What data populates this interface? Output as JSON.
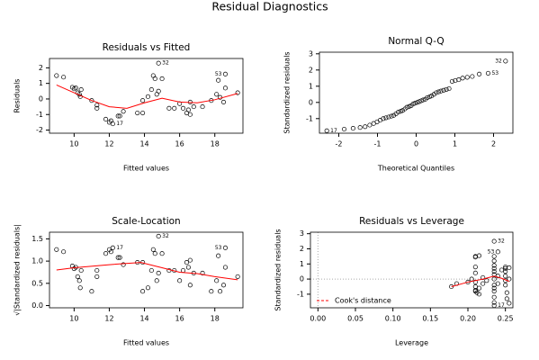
{
  "title": "Residual Diagnostics",
  "chart_data": [
    {
      "type": "scatter",
      "title": "Residuals vs Fitted",
      "xlabel": "Fitted values",
      "ylabel": "Residuals",
      "xlim": [
        8.6,
        19.6
      ],
      "ylim": [
        -2.2,
        2.6
      ],
      "xticks": [
        10,
        12,
        14,
        16,
        18
      ],
      "yticks": [
        -2,
        -1,
        0,
        1,
        2
      ],
      "color": "#000000",
      "x": [
        9.0,
        9.4,
        9.9,
        10.0,
        10.1,
        10.2,
        10.3,
        10.35,
        10.4,
        11.0,
        11.3,
        11.3,
        11.8,
        12.0,
        12.1,
        12.2,
        12.5,
        12.6,
        12.8,
        13.6,
        13.9,
        13.9,
        14.2,
        14.4,
        14.5,
        14.6,
        14.7,
        14.8,
        14.8,
        15.0,
        15.4,
        15.7,
        16.0,
        16.2,
        16.4,
        16.5,
        16.6,
        16.6,
        16.8,
        17.3,
        17.8,
        18.1,
        18.2,
        18.3,
        18.5,
        18.6,
        18.6,
        19.3
      ],
      "values": [
        1.5,
        1.4,
        0.75,
        0.65,
        0.7,
        0.4,
        0.3,
        0.15,
        0.6,
        -0.1,
        -0.4,
        -0.6,
        -1.3,
        -1.5,
        -1.4,
        -1.6,
        -1.1,
        -1.1,
        -0.8,
        -0.9,
        -0.9,
        -0.1,
        0.15,
        0.6,
        1.5,
        1.3,
        0.3,
        0.5,
        2.3,
        1.3,
        -0.6,
        -0.6,
        -0.3,
        -0.6,
        -0.9,
        -0.7,
        -1.0,
        -0.2,
        -0.5,
        -0.5,
        -0.1,
        0.3,
        1.2,
        0.1,
        -0.2,
        1.6,
        0.7,
        0.4
      ],
      "point_labels": [
        null,
        null,
        null,
        null,
        null,
        null,
        null,
        null,
        null,
        null,
        null,
        null,
        null,
        null,
        null,
        "17",
        null,
        null,
        null,
        null,
        null,
        null,
        null,
        null,
        null,
        null,
        null,
        null,
        "32",
        null,
        null,
        null,
        null,
        null,
        null,
        null,
        null,
        null,
        null,
        null,
        null,
        null,
        null,
        null,
        null,
        "53",
        null,
        null
      ],
      "smooth": {
        "color": "#ff0000",
        "x": [
          9.0,
          10.0,
          11.0,
          12.0,
          13.0,
          14.0,
          15.0,
          16.0,
          17.0,
          18.0,
          19.3
        ],
        "values": [
          0.9,
          0.4,
          -0.1,
          -0.5,
          -0.6,
          -0.25,
          0.05,
          -0.2,
          -0.25,
          -0.05,
          0.35
        ]
      }
    },
    {
      "type": "scatter",
      "title": "Normal Q-Q",
      "xlabel": "Theoretical Quantiles",
      "ylabel": "Standardized residuals",
      "xlim": [
        -2.5,
        2.5
      ],
      "ylim": [
        -1.9,
        3.1
      ],
      "xticks": [
        -2,
        -1,
        0,
        1,
        2
      ],
      "yticks": [
        -1,
        0,
        1,
        2,
        3
      ],
      "color": "#000000",
      "x": [
        -2.31,
        -1.86,
        -1.63,
        -1.45,
        -1.32,
        -1.2,
        -1.1,
        -1.01,
        -0.93,
        -0.85,
        -0.78,
        -0.71,
        -0.64,
        -0.58,
        -0.52,
        -0.46,
        -0.4,
        -0.35,
        -0.29,
        -0.24,
        -0.18,
        -0.13,
        -0.08,
        -0.03,
        0.03,
        0.08,
        0.13,
        0.18,
        0.24,
        0.29,
        0.35,
        0.4,
        0.46,
        0.52,
        0.58,
        0.64,
        0.71,
        0.78,
        0.85,
        0.93,
        1.01,
        1.1,
        1.2,
        1.32,
        1.45,
        1.63,
        1.86,
        2.31
      ],
      "values": [
        -1.75,
        -1.65,
        -1.6,
        -1.55,
        -1.5,
        -1.4,
        -1.3,
        -1.2,
        -1.1,
        -1.0,
        -0.95,
        -0.9,
        -0.85,
        -0.8,
        -0.7,
        -0.6,
        -0.55,
        -0.5,
        -0.4,
        -0.3,
        -0.25,
        -0.2,
        -0.1,
        -0.05,
        0.0,
        0.05,
        0.1,
        0.15,
        0.2,
        0.3,
        0.35,
        0.4,
        0.5,
        0.6,
        0.65,
        0.7,
        0.75,
        0.8,
        0.85,
        1.3,
        1.35,
        1.4,
        1.5,
        1.55,
        1.6,
        1.75,
        1.8,
        2.55
      ],
      "point_labels": [
        "17",
        null,
        null,
        null,
        null,
        null,
        null,
        null,
        null,
        null,
        null,
        null,
        null,
        null,
        null,
        null,
        null,
        null,
        null,
        null,
        null,
        null,
        null,
        null,
        null,
        null,
        null,
        null,
        null,
        null,
        null,
        null,
        null,
        null,
        null,
        null,
        null,
        null,
        null,
        null,
        null,
        null,
        null,
        null,
        null,
        null,
        "53",
        "32"
      ]
    },
    {
      "type": "scatter",
      "title": "Scale-Location",
      "xlabel": "Fitted values",
      "ylabel": "√|Standardized residuals|",
      "xlim": [
        8.6,
        19.6
      ],
      "ylim": [
        -0.05,
        1.65
      ],
      "xticks": [
        10,
        12,
        14,
        16,
        18
      ],
      "yticks": [
        {
          "value": 0,
          "label": "0.0"
        },
        {
          "value": 0.5,
          "label": "0.5"
        },
        {
          "value": 1,
          "label": "1.0"
        },
        {
          "value": 1.5,
          "label": "1.5"
        }
      ],
      "color": "#000000",
      "x": [
        9.0,
        9.4,
        9.9,
        10.0,
        10.1,
        10.2,
        10.3,
        10.35,
        10.4,
        11.0,
        11.3,
        11.3,
        11.8,
        12.0,
        12.1,
        12.2,
        12.5,
        12.6,
        12.8,
        13.6,
        13.9,
        13.9,
        14.2,
        14.4,
        14.5,
        14.6,
        14.7,
        14.8,
        14.8,
        15.0,
        15.4,
        15.7,
        16.0,
        16.2,
        16.4,
        16.5,
        16.6,
        16.6,
        16.8,
        17.3,
        17.8,
        18.1,
        18.2,
        18.3,
        18.5,
        18.6,
        18.6,
        19.3
      ],
      "values": [
        1.26,
        1.21,
        0.89,
        0.83,
        0.86,
        0.65,
        0.56,
        0.4,
        0.79,
        0.32,
        0.65,
        0.79,
        1.17,
        1.26,
        1.21,
        1.3,
        1.08,
        1.08,
        0.92,
        0.97,
        0.97,
        0.32,
        0.4,
        0.79,
        1.26,
        1.17,
        0.56,
        0.73,
        1.56,
        1.17,
        0.79,
        0.79,
        0.56,
        0.79,
        0.97,
        0.86,
        1.02,
        0.46,
        0.73,
        0.73,
        0.32,
        0.56,
        1.12,
        0.32,
        0.46,
        1.3,
        0.86,
        0.65
      ],
      "point_labels": [
        null,
        null,
        null,
        null,
        null,
        null,
        null,
        null,
        null,
        null,
        null,
        null,
        null,
        null,
        null,
        "17",
        null,
        null,
        null,
        null,
        null,
        null,
        null,
        null,
        null,
        null,
        null,
        null,
        "32",
        null,
        null,
        null,
        null,
        null,
        null,
        null,
        null,
        null,
        null,
        null,
        null,
        null,
        null,
        null,
        null,
        "53",
        null,
        null
      ],
      "smooth": {
        "color": "#ff0000",
        "x": [
          9.0,
          10.0,
          12.0,
          13.8,
          15.0,
          16.0,
          17.0,
          18.0,
          19.3
        ],
        "values": [
          0.8,
          0.85,
          0.92,
          0.97,
          0.85,
          0.75,
          0.72,
          0.65,
          0.58
        ]
      }
    },
    {
      "type": "scatter",
      "title": "Residuals vs Leverage",
      "xlabel": "Leverage",
      "ylabel": "Standardized residuals",
      "xlim": [
        -0.01,
        0.26
      ],
      "ylim": [
        -1.9,
        3.1
      ],
      "xticks": [
        {
          "value": 0,
          "label": "0.00"
        },
        {
          "value": 0.05,
          "label": "0.05"
        },
        {
          "value": 0.1,
          "label": "0.10"
        },
        {
          "value": 0.15,
          "label": "0.15"
        },
        {
          "value": 0.2,
          "label": "0.20"
        },
        {
          "value": 0.25,
          "label": "0.25"
        }
      ],
      "yticks": [
        -1,
        0,
        1,
        2,
        3
      ],
      "color": "#000000",
      "x": [
        0.178,
        0.185,
        0.2,
        0.205,
        0.21,
        0.21,
        0.21,
        0.21,
        0.21,
        0.21,
        0.21,
        0.21,
        0.212,
        0.215,
        0.215,
        0.215,
        0.22,
        0.22,
        0.225,
        0.235,
        0.235,
        0.235,
        0.235,
        0.235,
        0.235,
        0.235,
        0.235,
        0.235,
        0.235,
        0.235,
        0.235,
        0.235,
        0.235,
        0.24,
        0.24,
        0.24,
        0.245,
        0.25,
        0.25,
        0.25,
        0.25,
        0.25,
        0.25,
        0.252,
        0.252,
        0.255,
        0.255,
        0.255
      ],
      "values": [
        -0.5,
        -0.3,
        -0.2,
        0.0,
        1.5,
        1.45,
        0.8,
        0.4,
        -0.2,
        -0.5,
        -0.75,
        -0.8,
        -0.9,
        1.55,
        -0.6,
        -1.0,
        -0.3,
        0.1,
        -0.1,
        2.5,
        1.5,
        1.2,
        0.9,
        0.7,
        0.5,
        0.3,
        0.0,
        -0.4,
        -0.6,
        -0.8,
        -1.2,
        -1.55,
        -1.75,
        1.8,
        0.2,
        -0.3,
        0.6,
        0.8,
        0.7,
        0.5,
        0.2,
        -0.1,
        -0.4,
        -0.9,
        -1.3,
        -1.6,
        0.0,
        0.75
      ],
      "point_labels": [
        null,
        null,
        null,
        null,
        null,
        null,
        null,
        null,
        null,
        null,
        null,
        null,
        null,
        null,
        null,
        null,
        null,
        null,
        null,
        "32",
        null,
        null,
        null,
        null,
        null,
        null,
        null,
        null,
        null,
        null,
        null,
        null,
        "17",
        "53",
        null,
        null,
        null,
        null,
        null,
        null,
        null,
        null,
        null,
        null,
        null,
        null,
        null,
        null
      ],
      "smooth": {
        "color": "#ff0000",
        "x": [
          0.178,
          0.2,
          0.21,
          0.22,
          0.235,
          0.245,
          0.255
        ],
        "values": [
          -0.5,
          -0.2,
          -0.1,
          0.0,
          0.2,
          0.05,
          -0.15
        ]
      },
      "legend": {
        "label": "Cook's distance",
        "color": "#ff0000",
        "position": "bottom-left"
      }
    }
  ]
}
